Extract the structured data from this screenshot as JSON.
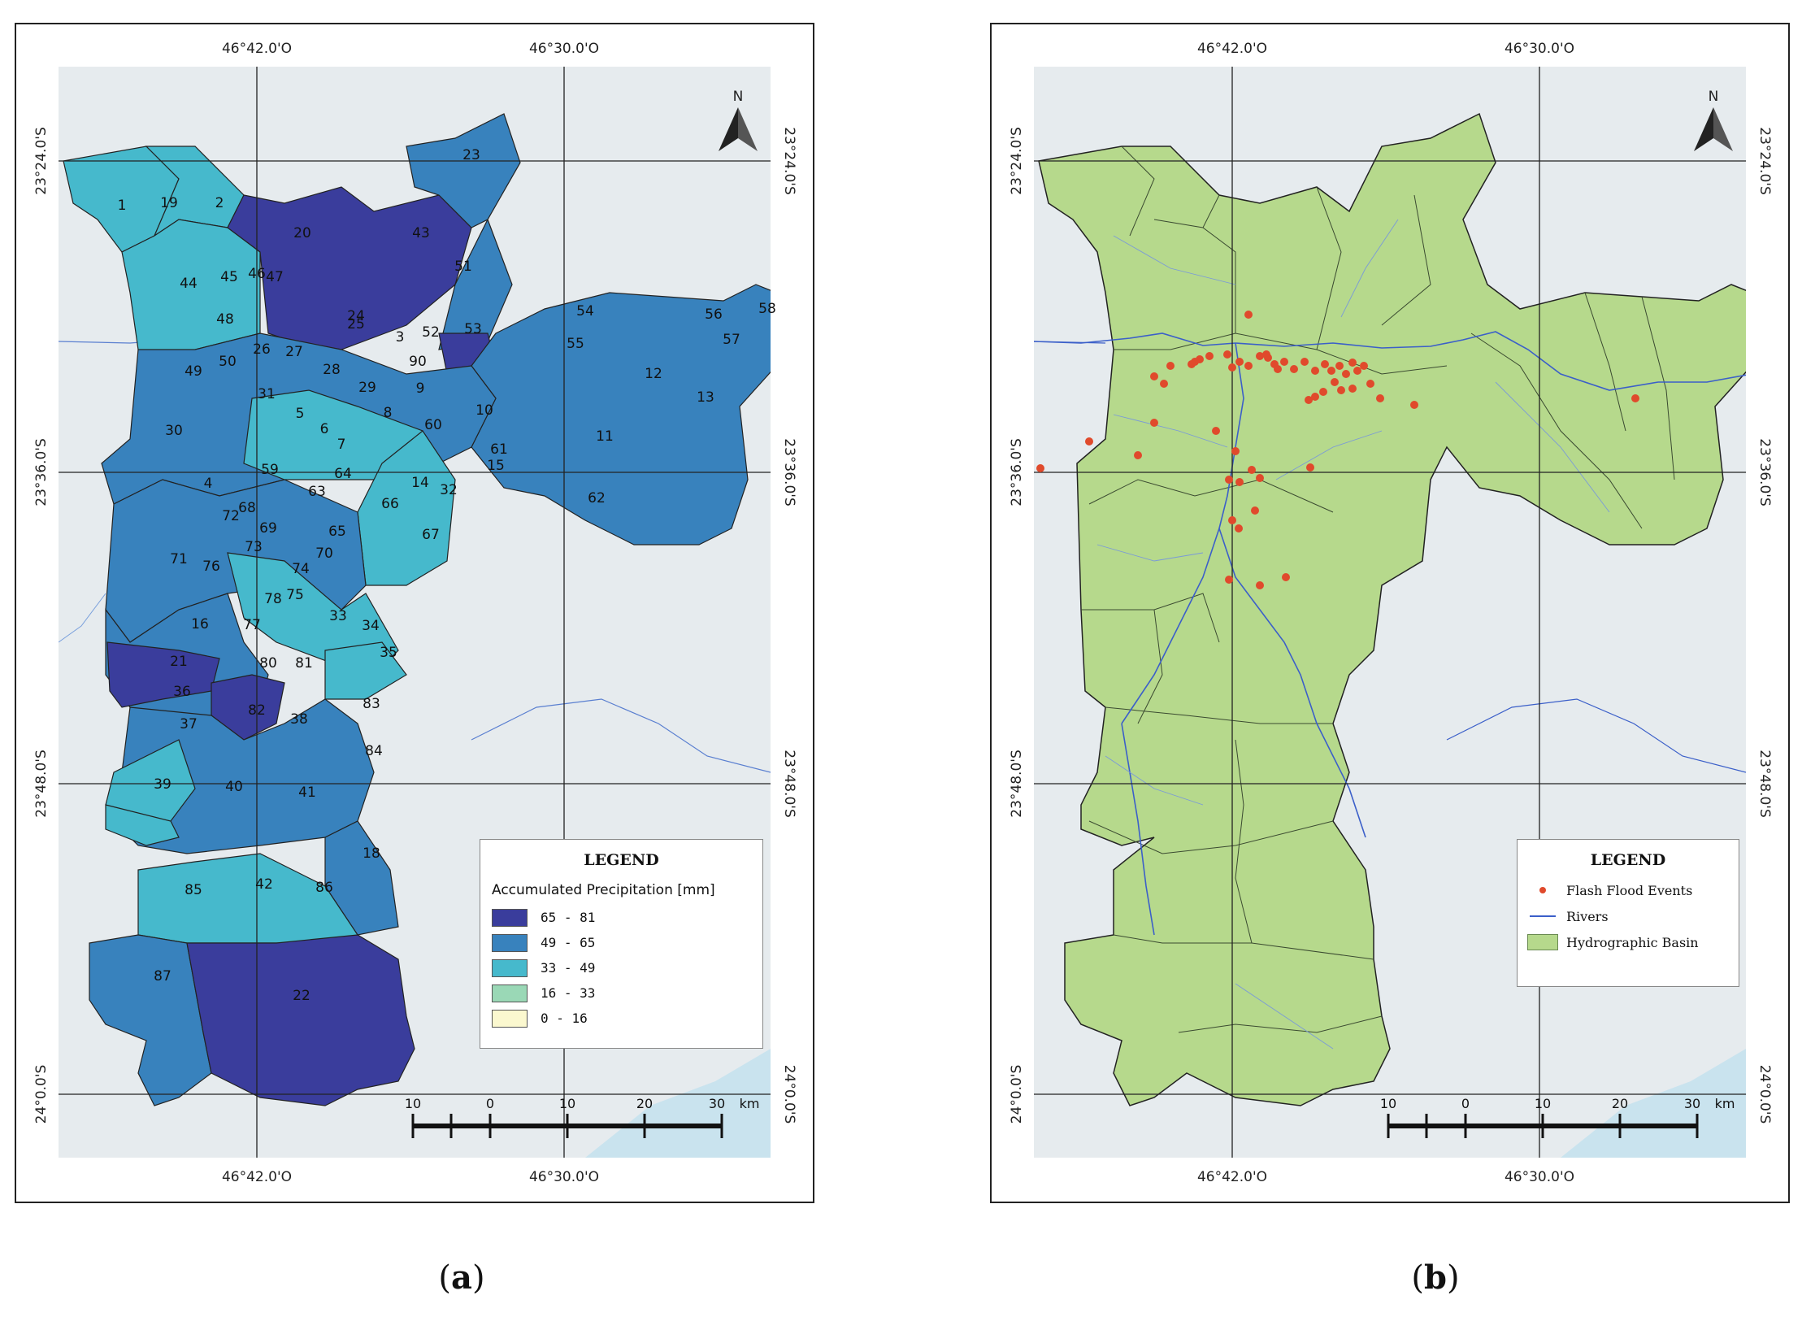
{
  "panels": [
    {
      "id": "a",
      "caption": "(a)",
      "caption_letter": "a",
      "top_lon_labels": [
        "46°42.0'O",
        "46°30.0'O"
      ],
      "bottom_lon_labels": [
        "46°42.0'O",
        "46°30.0'O"
      ],
      "left_lat_labels": [
        "23°24.0'S",
        "23°36.0'S",
        "23°48.0'S",
        "24°0.0'S"
      ],
      "right_lat_labels": [
        "23°24.0'S",
        "23°36.0'S",
        "23°48.0'S",
        "24°0.0'S"
      ],
      "north_label": "N",
      "scale_labels": [
        "10",
        "0",
        "10",
        "20",
        "30",
        "km"
      ],
      "legend": {
        "title": "LEGEND",
        "subtitle": "Accumulated Precipitation [mm]",
        "classes": [
          {
            "label": "65  -  81",
            "color": "#3a3d9c"
          },
          {
            "label": "49  -  65",
            "color": "#3882bd"
          },
          {
            "label": "33  -  49",
            "color": "#46b9cc"
          },
          {
            "label": "16  -  33",
            "color": "#9ad8b6"
          },
          {
            "label": "0  -  16",
            "color": "#fbf8cf"
          }
        ]
      },
      "subbasin_labels": [
        "1",
        "19",
        "2",
        "20",
        "43",
        "23",
        "44",
        "45",
        "46",
        "47",
        "24",
        "3",
        "51",
        "48",
        "25",
        "52",
        "53",
        "54",
        "56",
        "58",
        "57",
        "55",
        "26",
        "27",
        "50",
        "28",
        "49",
        "90",
        "29",
        "9",
        "31",
        "5",
        "10",
        "12",
        "13",
        "30",
        "6",
        "7",
        "8",
        "60",
        "61",
        "11",
        "15",
        "59",
        "64",
        "4",
        "63",
        "14",
        "32",
        "62",
        "66",
        "68",
        "72",
        "69",
        "65",
        "73",
        "70",
        "67",
        "71",
        "76",
        "74",
        "78",
        "75",
        "33",
        "34",
        "16",
        "77",
        "21",
        "80",
        "81",
        "35",
        "36",
        "82",
        "83",
        "38",
        "37",
        "84",
        "39",
        "40",
        "41",
        "18",
        "85",
        "42",
        "86",
        "87",
        "22"
      ]
    },
    {
      "id": "b",
      "caption": "(b)",
      "caption_letter": "b",
      "top_lon_labels": [
        "46°42.0'O",
        "46°30.0'O"
      ],
      "bottom_lon_labels": [
        "46°42.0'O",
        "46°30.0'O"
      ],
      "left_lat_labels": [
        "23°24.0'S",
        "23°36.0'S",
        "23°48.0'S",
        "24°0.0'S"
      ],
      "right_lat_labels": [
        "23°24.0'S",
        "23°36.0'S",
        "23°48.0'S",
        "24°0.0'S"
      ],
      "north_label": "N",
      "scale_labels": [
        "10",
        "0",
        "10",
        "20",
        "30",
        "km"
      ],
      "legend": {
        "title": "LEGEND",
        "items": [
          {
            "label": "Flash Flood Events",
            "symbol": "red-dot",
            "color": "#e04a2c"
          },
          {
            "label": "Rivers",
            "symbol": "blue-line",
            "color": "#3b5fc9"
          },
          {
            "label": "Hydrographic Basin",
            "symbol": "green-fill",
            "color": "#b6d98c"
          }
        ]
      }
    }
  ],
  "colors": {
    "background": "#e6ebee",
    "basin_fill": "#b6d98c",
    "river": "#3b5fc9",
    "flood_event": "#e04a2c",
    "sea": "#c9e3ee"
  }
}
